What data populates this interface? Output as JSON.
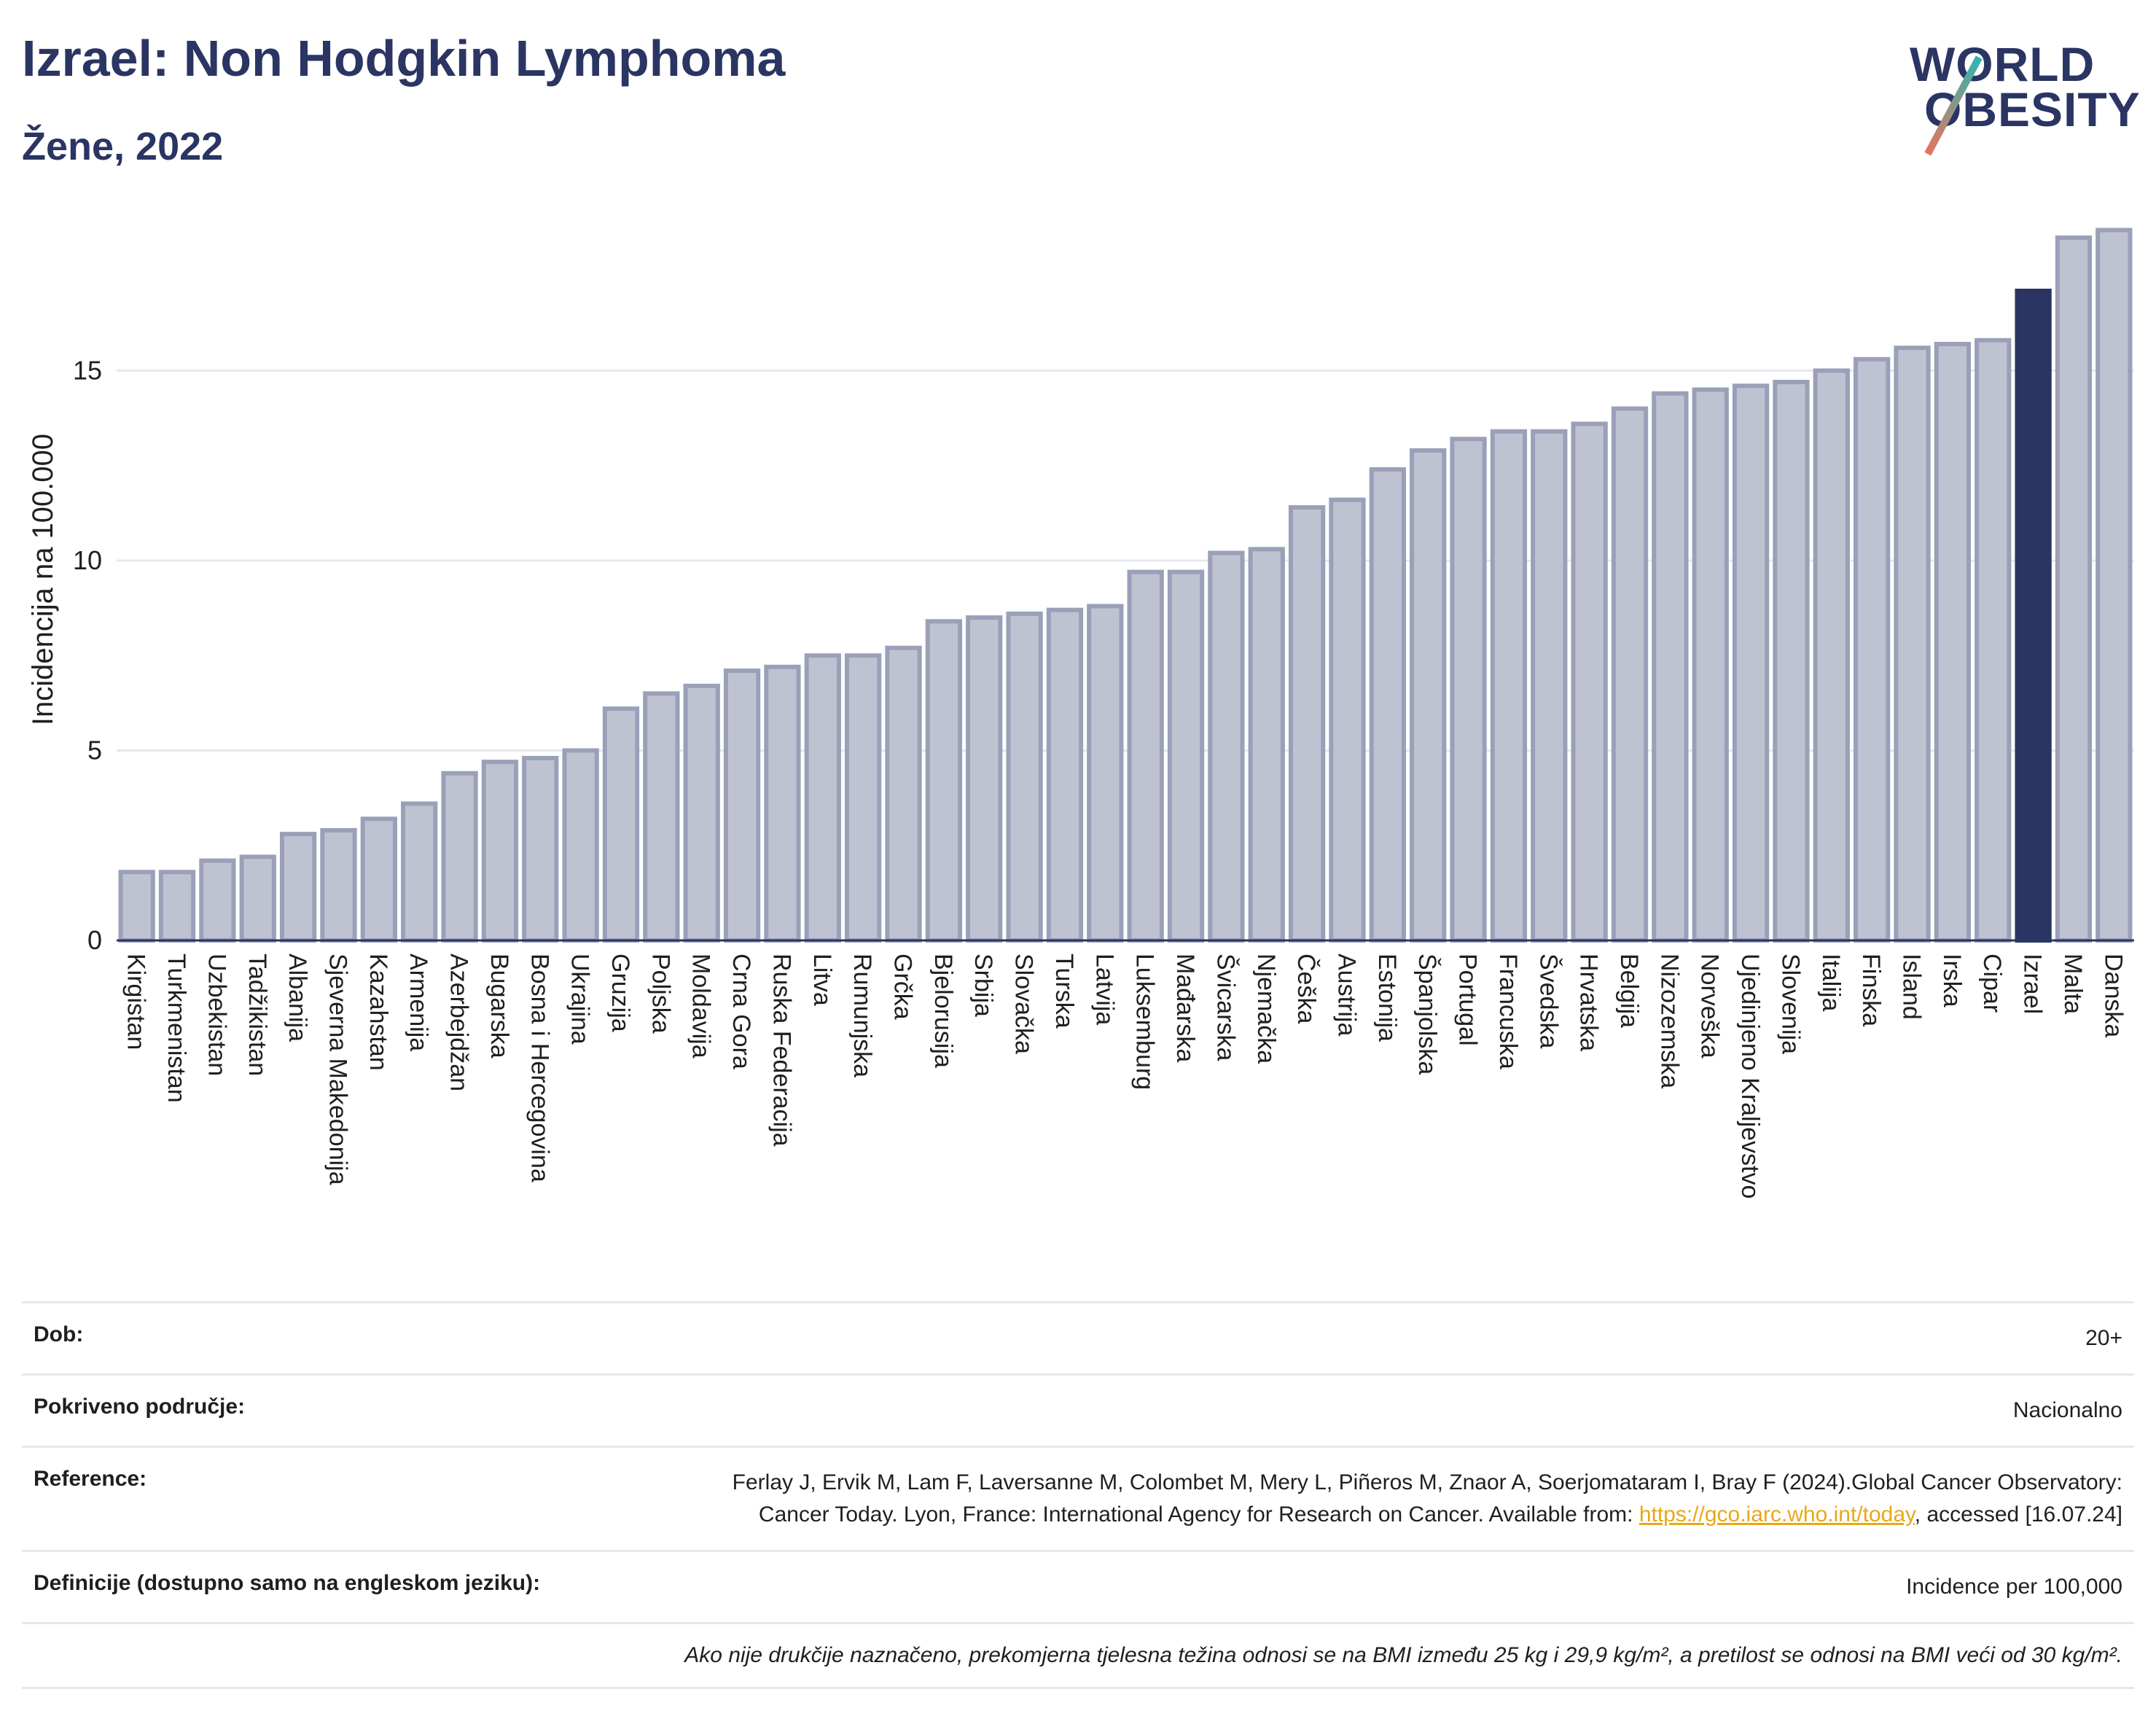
{
  "title": "Izrael: Non Hodgkin Lymphoma",
  "subtitle": "Žene, 2022",
  "logo": {
    "line1": "WORLD",
    "line2": "OBESITY"
  },
  "colors": {
    "bar": "#bfc3d1",
    "bar_stroke": "#9aa0b8",
    "highlight": "#2b3563",
    "grid": "#e6e8ef",
    "text": "#1f1f1f"
  },
  "chart_data": {
    "type": "bar",
    "ylabel": "Incidencija na 100.000",
    "ylim": [
      0,
      19
    ],
    "yticks": [
      0,
      5,
      10,
      15
    ],
    "highlight": "Izrael",
    "categories": [
      "Kirgistan",
      "Turkmenistan",
      "Uzbekistan",
      "Tadžikistan",
      "Albanija",
      "Sjeverna Makedonija",
      "Kazahstan",
      "Armenija",
      "Azerbejdžan",
      "Bugarska",
      "Bosna i Hercegovina",
      "Ukrajina",
      "Gruzija",
      "Poljska",
      "Moldavija",
      "Crna Gora",
      "Ruska Federacija",
      "Litva",
      "Rumunjska",
      "Grčka",
      "Bjelorusija",
      "Srbija",
      "Slovačka",
      "Turska",
      "Latvija",
      "Luksemburg",
      "Mađarska",
      "Švicarska",
      "Njemačka",
      "Češka",
      "Austrija",
      "Estonija",
      "Španjolska",
      "Portugal",
      "Francuska",
      "Švedska",
      "Hrvatska",
      "Belgija",
      "Nizozemska",
      "Norveška",
      "Ujedinjeno Kraljevstvo",
      "Slovenija",
      "Italija",
      "Finska",
      "Island",
      "Irska",
      "Cipar",
      "Izrael",
      "Malta",
      "Danska"
    ],
    "values": [
      1.8,
      1.8,
      2.1,
      2.2,
      2.8,
      2.9,
      3.2,
      3.6,
      4.4,
      4.7,
      4.8,
      5.0,
      6.1,
      6.5,
      6.7,
      7.1,
      7.2,
      7.5,
      7.5,
      7.7,
      8.4,
      8.5,
      8.6,
      8.7,
      8.8,
      9.7,
      9.7,
      10.2,
      10.3,
      11.4,
      11.6,
      12.4,
      12.9,
      13.2,
      13.4,
      13.4,
      13.6,
      14.0,
      14.4,
      14.5,
      14.6,
      14.7,
      15.0,
      15.3,
      15.6,
      15.7,
      15.8,
      17.1,
      18.5,
      18.7
    ]
  },
  "footer": {
    "age_label": "Dob:",
    "age_value": "20+",
    "coverage_label": "Pokriveno područje:",
    "coverage_value": "Nacionalno",
    "ref_label": "Reference:",
    "ref_text": "Ferlay J, Ervik M, Lam F, Laversanne M, Colombet M, Mery L, Piñeros M, Znaor A, Soerjomataram I, Bray F (2024).Global Cancer Observatory: Cancer Today. Lyon, France: International Agency for Research on Cancer. Available from: ",
    "ref_link": "https://gco.iarc.who.int/today",
    "ref_tail": ", accessed [16.07.24]",
    "def_label": "Definicije (dostupno samo na engleskom jeziku):",
    "def_value": "Incidence per 100,000",
    "note": "Ako nije drukčije naznačeno, prekomjerna tjelesna težina odnosi se na BMI između 25 kg i 29,9 kg/m², a pretilost se odnosi na BMI veći od 30 kg/m²."
  }
}
